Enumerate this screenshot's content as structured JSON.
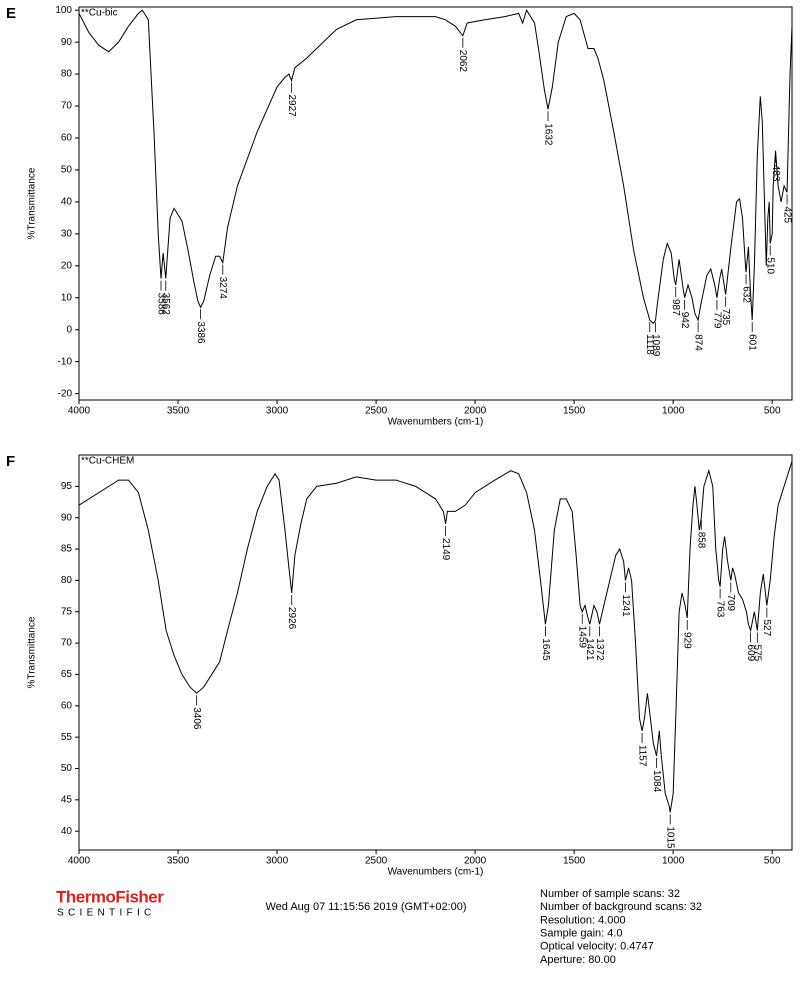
{
  "panels": [
    "E",
    "F"
  ],
  "chart_data": [
    {
      "type": "line",
      "xlabel": "Wavenumbers (cm-1)",
      "ylabel": "%Transmittance",
      "xlim": [
        4000,
        400
      ],
      "ylim": [
        -22,
        101
      ],
      "xticks": [
        4000,
        3500,
        3000,
        2500,
        2000,
        1500,
        1000,
        500
      ],
      "yticks": [
        -20,
        -10,
        0,
        10,
        20,
        30,
        40,
        50,
        60,
        70,
        80,
        90,
        100
      ],
      "x": [
        4000,
        3950,
        3900,
        3850,
        3800,
        3750,
        3700,
        3680,
        3650,
        3620,
        3600,
        3586,
        3575,
        3562,
        3540,
        3520,
        3480,
        3450,
        3420,
        3400,
        3386,
        3370,
        3340,
        3310,
        3290,
        3274,
        3250,
        3200,
        3100,
        3000,
        2960,
        2940,
        2927,
        2910,
        2850,
        2800,
        2700,
        2600,
        2400,
        2200,
        2150,
        2100,
        2062,
        2040,
        1950,
        1850,
        1780,
        1760,
        1740,
        1700,
        1680,
        1650,
        1632,
        1610,
        1580,
        1540,
        1500,
        1470,
        1430,
        1400,
        1380,
        1350,
        1300,
        1250,
        1200,
        1150,
        1118,
        1100,
        1089,
        1080,
        1050,
        1030,
        1010,
        995,
        987,
        970,
        950,
        942,
        925,
        905,
        890,
        874,
        860,
        830,
        810,
        790,
        779,
        765,
        755,
        745,
        735,
        710,
        680,
        665,
        650,
        635,
        632,
        620,
        610,
        601,
        590,
        575,
        560,
        550,
        530,
        522,
        515,
        510,
        500,
        495,
        483,
        470,
        455,
        440,
        425,
        410,
        400
      ],
      "series": [
        {
          "name": "**Cu-bic",
          "color": "#000000",
          "values": [
            99,
            93,
            89,
            87,
            90,
            95,
            99,
            100,
            97,
            60,
            30,
            16,
            24,
            16,
            35,
            38,
            34,
            25,
            15,
            9,
            7,
            9,
            17,
            23,
            23,
            21,
            32,
            45,
            62,
            76,
            79,
            80,
            78,
            82,
            85,
            88,
            94,
            97,
            98,
            98,
            97,
            95,
            92,
            96,
            97,
            98,
            99,
            96,
            100,
            96,
            88,
            75,
            69,
            76,
            90,
            98,
            99,
            97,
            88,
            88,
            85,
            78,
            62,
            45,
            25,
            10,
            3,
            2,
            3,
            8,
            22,
            27,
            24,
            16,
            14,
            22,
            13,
            10,
            14,
            10,
            5,
            3,
            8,
            17,
            19,
            14,
            10,
            16,
            19,
            15,
            11,
            25,
            40,
            41,
            35,
            20,
            18,
            26,
            12,
            3,
            20,
            55,
            73,
            65,
            20,
            35,
            40,
            27,
            30,
            45,
            56,
            45,
            40,
            45,
            43,
            80,
            95
          ]
        }
      ],
      "peaks": [
        3586,
        3562,
        3386,
        3274,
        2927,
        2062,
        1632,
        1118,
        1089,
        987,
        942,
        874,
        779,
        735,
        632,
        601,
        510,
        483,
        425
      ]
    },
    {
      "type": "line",
      "xlabel": "Wavenumbers (cm-1)",
      "ylabel": "%Transmittance",
      "xlim": [
        4000,
        400
      ],
      "ylim": [
        37,
        100
      ],
      "xticks": [
        4000,
        3500,
        3000,
        2500,
        2000,
        1500,
        1000,
        500
      ],
      "yticks": [
        40,
        45,
        50,
        55,
        60,
        65,
        70,
        75,
        80,
        85,
        90,
        95
      ],
      "x": [
        4000,
        3900,
        3800,
        3750,
        3700,
        3650,
        3600,
        3560,
        3520,
        3480,
        3440,
        3406,
        3370,
        3330,
        3290,
        3250,
        3200,
        3150,
        3100,
        3050,
        3010,
        2990,
        2960,
        2940,
        2926,
        2910,
        2880,
        2850,
        2800,
        2700,
        2600,
        2500,
        2400,
        2300,
        2200,
        2160,
        2149,
        2140,
        2100,
        2050,
        2000,
        1900,
        1820,
        1780,
        1740,
        1700,
        1670,
        1645,
        1630,
        1600,
        1570,
        1540,
        1510,
        1490,
        1470,
        1459,
        1445,
        1430,
        1421,
        1400,
        1385,
        1372,
        1350,
        1320,
        1290,
        1270,
        1250,
        1241,
        1225,
        1210,
        1190,
        1170,
        1157,
        1145,
        1130,
        1115,
        1100,
        1084,
        1070,
        1060,
        1040,
        1020,
        1015,
        1000,
        985,
        970,
        955,
        940,
        929,
        915,
        900,
        890,
        880,
        868,
        858,
        845,
        820,
        800,
        785,
        770,
        763,
        750,
        740,
        725,
        709,
        700,
        690,
        670,
        650,
        630,
        620,
        609,
        590,
        575,
        560,
        545,
        527,
        510,
        490,
        470,
        440,
        420,
        400
      ],
      "series": [
        {
          "name": "**Cu-CHEM",
          "color": "#000000",
          "values": [
            92,
            94,
            96,
            96,
            94,
            88,
            80,
            72,
            68,
            65,
            63,
            62,
            63,
            65,
            67,
            72,
            78,
            85,
            91,
            95,
            97,
            96,
            88,
            82,
            78,
            84,
            89,
            93,
            95,
            95.5,
            96.5,
            96,
            96,
            95,
            93,
            91,
            89,
            91,
            91,
            92,
            94,
            96,
            97.5,
            97,
            94,
            88,
            80,
            73,
            76,
            88,
            93,
            93,
            91,
            84,
            76,
            75,
            76,
            74,
            73,
            76,
            75,
            73,
            76,
            80,
            84,
            85,
            83,
            80,
            82,
            80,
            70,
            58,
            56,
            58,
            62,
            58,
            54,
            52,
            56,
            52,
            46,
            44,
            43,
            46,
            60,
            75,
            78,
            76,
            74,
            85,
            92,
            95,
            92,
            88,
            90,
            95,
            97.5,
            95,
            85,
            80,
            79,
            85,
            87,
            83,
            80,
            82,
            81,
            78,
            77,
            75,
            73,
            72,
            75,
            72,
            78,
            81,
            76,
            80,
            87,
            92,
            95,
            97,
            99
          ]
        }
      ],
      "peaks": [
        3406,
        2926,
        2149,
        1645,
        1459,
        1421,
        1372,
        1241,
        1157,
        1084,
        1015,
        929,
        858,
        763,
        709,
        609,
        575,
        527
      ]
    }
  ],
  "footer": {
    "logo": "ThermoFisher",
    "logo_sub": "SCIENTIFIC",
    "date": "Wed Aug 07 11:15:56 2019 (GMT+02:00)",
    "settings": [
      "Number of sample scans:  32",
      "Number of background scans:  32",
      "Resolution:  4.000",
      "Sample gain:  4.0",
      "Optical velocity:  0.4747",
      "Aperture:  80.00"
    ]
  }
}
